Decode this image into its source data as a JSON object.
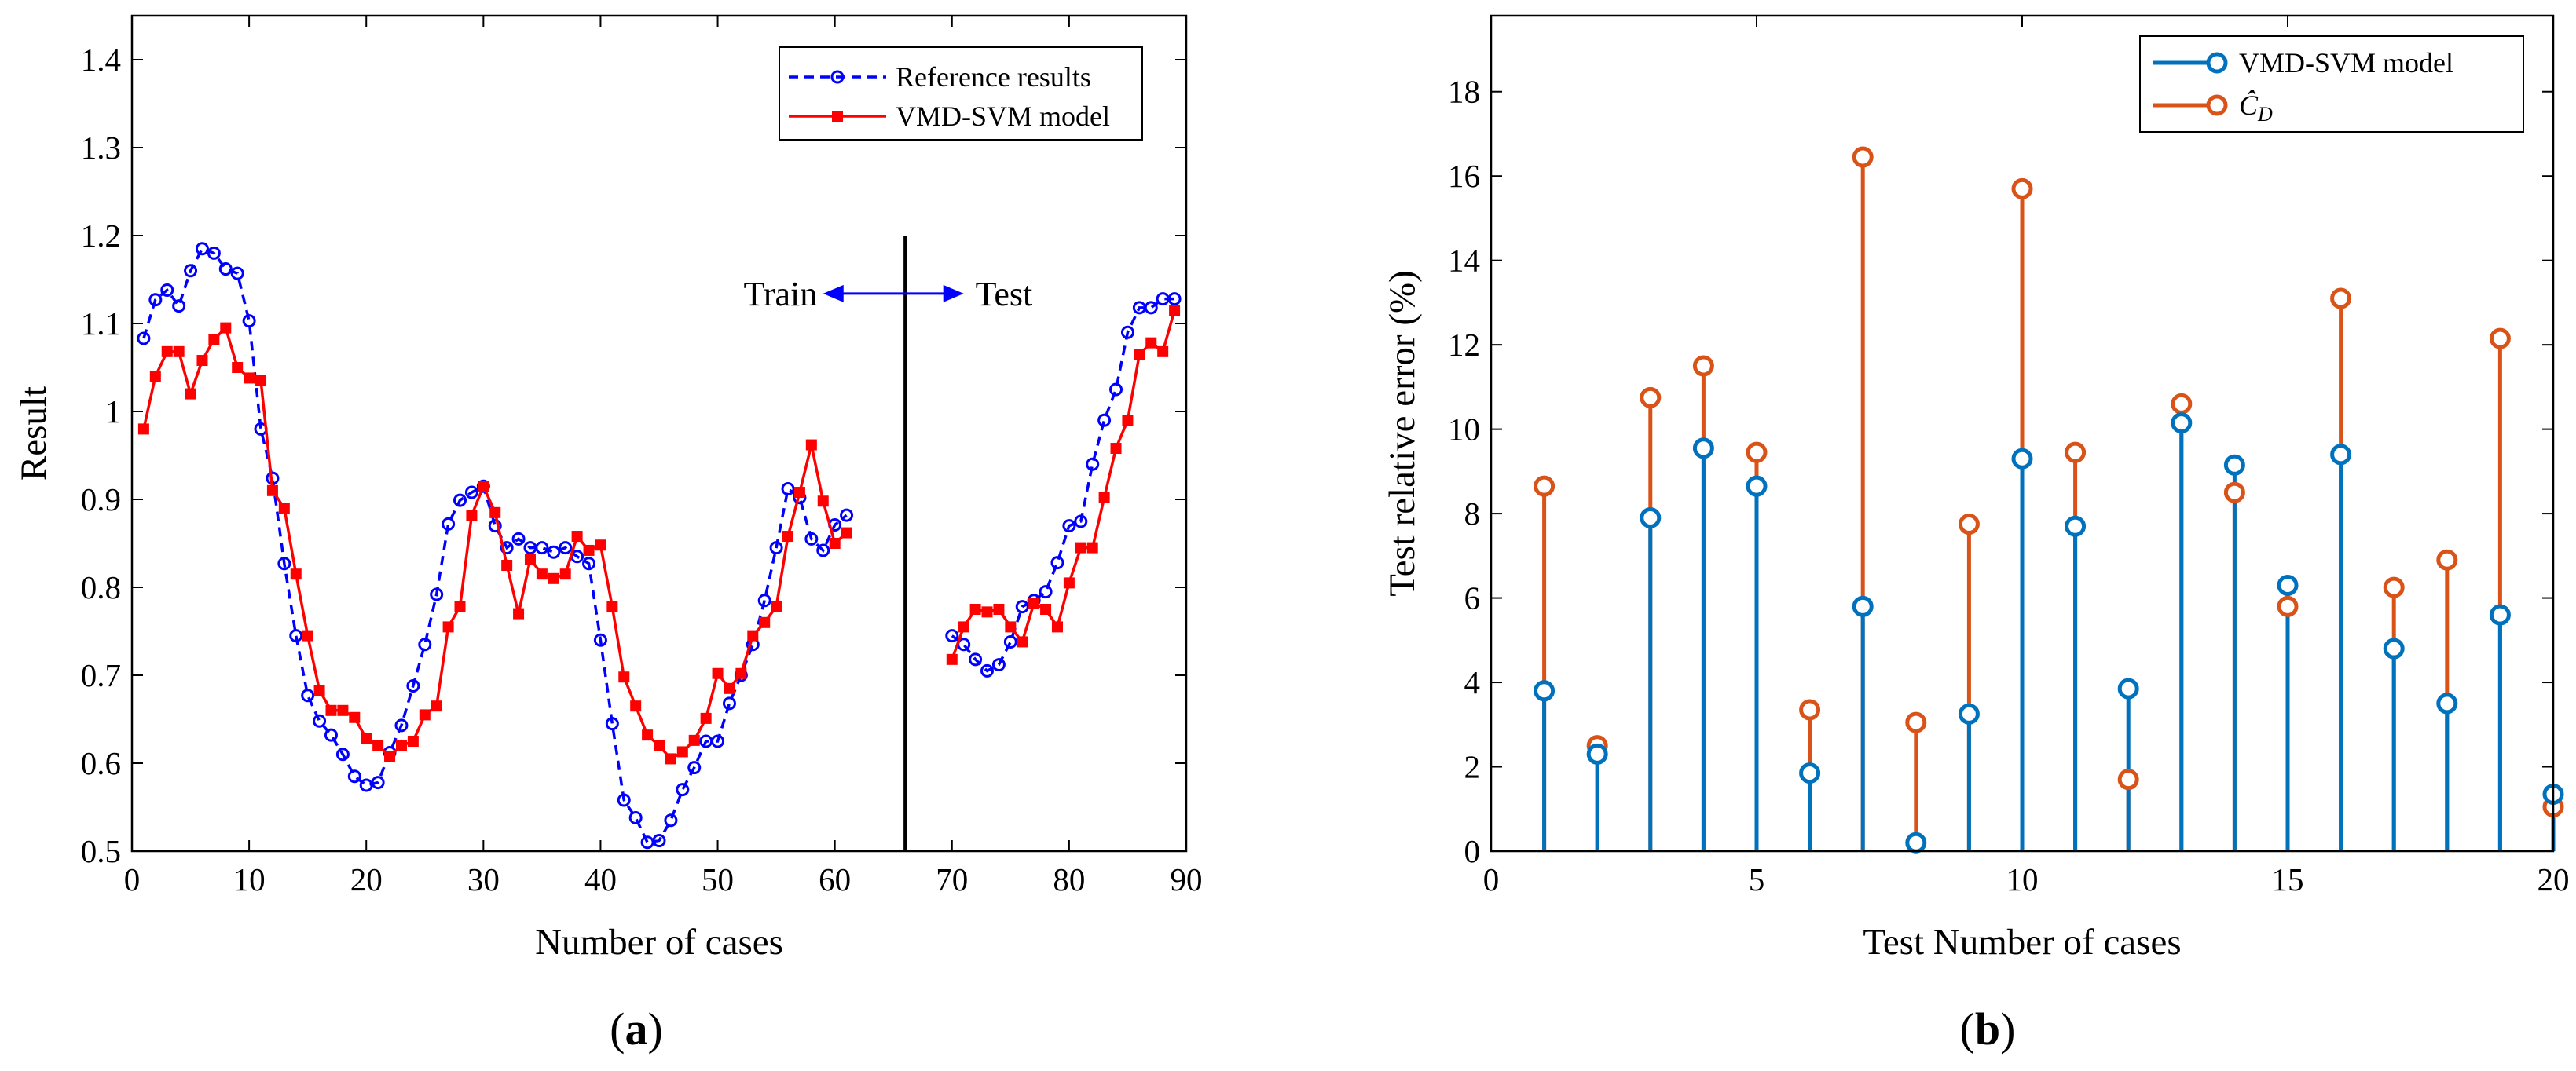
{
  "chart_data": [
    {
      "panel": "(a)",
      "type": "line",
      "xlabel": "Number of cases",
      "ylabel": "Result",
      "xlim": [
        0,
        90
      ],
      "ylim": [
        0.5,
        1.45
      ],
      "xticks": [
        0,
        10,
        20,
        30,
        40,
        50,
        60,
        70,
        80,
        90
      ],
      "yticks": [
        0.5,
        0.6,
        0.7,
        0.8,
        0.9,
        1,
        1.1,
        1.2,
        1.3,
        1.4
      ],
      "ytick_labels": [
        "0.5",
        "0.6",
        "0.7",
        "0.8",
        "0.9",
        "1",
        "1.1",
        "1.2",
        "1.3",
        "1.4"
      ],
      "legend_position": "top-right",
      "series": [
        {
          "name": "Reference results",
          "style": "dashed-circle",
          "color": "#0000ff",
          "segments": [
            {
              "x": [
                1,
                2,
                3,
                4,
                5,
                6,
                7,
                8,
                9,
                10,
                11,
                12,
                13,
                14,
                15,
                16,
                17,
                18,
                19,
                20,
                21,
                22,
                23,
                24,
                25,
                26,
                27,
                28,
                29,
                30,
                31,
                32,
                33,
                34,
                35,
                36,
                37,
                38,
                39,
                40,
                41,
                42,
                43,
                44,
                45,
                46,
                47,
                48,
                49,
                50,
                51,
                52,
                53,
                54,
                55,
                56,
                57,
                58,
                59,
                60,
                61
              ],
              "y": [
                1.083,
                1.127,
                1.138,
                1.12,
                1.16,
                1.185,
                1.18,
                1.162,
                1.157,
                1.103,
                0.98,
                0.924,
                0.827,
                0.745,
                0.677,
                0.648,
                0.632,
                0.61,
                0.585,
                0.575,
                0.578,
                0.612,
                0.643,
                0.688,
                0.735,
                0.792,
                0.872,
                0.899,
                0.908,
                0.915,
                0.87,
                0.845,
                0.855,
                0.845,
                0.845,
                0.84,
                0.845,
                0.835,
                0.827,
                0.74,
                0.645,
                0.558,
                0.538,
                0.51,
                0.512,
                0.535,
                0.57,
                0.595,
                0.625,
                0.625,
                0.668,
                0.7,
                0.735,
                0.785,
                0.845,
                0.912,
                0.902,
                0.855,
                0.842,
                0.871,
                0.882
              ]
            },
            {
              "x": [
                70,
                71,
                72,
                73,
                74,
                75,
                76,
                77,
                78,
                79,
                80,
                81,
                82,
                83,
                84,
                85,
                86,
                87,
                88,
                89
              ],
              "y": [
                0.745,
                0.735,
                0.718,
                0.705,
                0.712,
                0.738,
                0.778,
                0.785,
                0.795,
                0.828,
                0.87,
                0.875,
                0.94,
                0.99,
                1.025,
                1.09,
                1.118,
                1.118,
                1.128,
                1.128
              ]
            }
          ]
        },
        {
          "name": "VMD-SVM model",
          "style": "solid-square",
          "color": "#ff0000",
          "segments": [
            {
              "x": [
                1,
                2,
                3,
                4,
                5,
                6,
                7,
                8,
                9,
                10,
                11,
                12,
                13,
                14,
                15,
                16,
                17,
                18,
                19,
                20,
                21,
                22,
                23,
                24,
                25,
                26,
                27,
                28,
                29,
                30,
                31,
                32,
                33,
                34,
                35,
                36,
                37,
                38,
                39,
                40,
                41,
                42,
                43,
                44,
                45,
                46,
                47,
                48,
                49,
                50,
                51,
                52,
                53,
                54,
                55,
                56,
                57,
                58,
                59,
                60,
                61
              ],
              "y": [
                0.98,
                1.04,
                1.068,
                1.068,
                1.02,
                1.058,
                1.082,
                1.095,
                1.05,
                1.038,
                1.035,
                0.91,
                0.89,
                0.815,
                0.745,
                0.683,
                0.66,
                0.66,
                0.652,
                0.628,
                0.62,
                0.608,
                0.62,
                0.625,
                0.655,
                0.665,
                0.755,
                0.778,
                0.882,
                0.915,
                0.885,
                0.825,
                0.77,
                0.832,
                0.815,
                0.81,
                0.815,
                0.858,
                0.842,
                0.848,
                0.778,
                0.698,
                0.665,
                0.632,
                0.62,
                0.605,
                0.613,
                0.626,
                0.651,
                0.702,
                0.685,
                0.702,
                0.745,
                0.76,
                0.778,
                0.858,
                0.908,
                0.962,
                0.898,
                0.85,
                0.862
              ]
            },
            {
              "x": [
                70,
                71,
                72,
                73,
                74,
                75,
                76,
                77,
                78,
                79,
                80,
                81,
                82,
                83,
                84,
                85,
                86,
                87,
                88,
                89
              ],
              "y": [
                0.718,
                0.755,
                0.775,
                0.772,
                0.775,
                0.755,
                0.738,
                0.782,
                0.775,
                0.755,
                0.805,
                0.845,
                0.845,
                0.902,
                0.958,
                0.99,
                1.065,
                1.078,
                1.068,
                1.115
              ]
            }
          ]
        }
      ],
      "annotations": [
        {
          "type": "vline",
          "x": 66
        },
        {
          "type": "text",
          "text": "Train",
          "x": 58.5,
          "y": 1.134
        },
        {
          "type": "text",
          "text": "Test",
          "x": 72,
          "y": 1.134
        },
        {
          "type": "double-arrow",
          "x1": 59,
          "x2": 71,
          "y": 1.134
        }
      ]
    },
    {
      "panel": "(b)",
      "type": "stem",
      "xlabel": "Test Number of cases",
      "ylabel": "Test relative error (%)",
      "xlim": [
        0,
        20
      ],
      "ylim": [
        0,
        19.8
      ],
      "xticks": [
        0,
        5,
        10,
        15,
        20
      ],
      "yticks": [
        0,
        2,
        4,
        6,
        8,
        10,
        12,
        14,
        16,
        18
      ],
      "legend_position": "top-right",
      "x": [
        1,
        2,
        3,
        4,
        5,
        6,
        7,
        8,
        9,
        10,
        11,
        12,
        13,
        14,
        15,
        16,
        17,
        18,
        19,
        20
      ],
      "series": [
        {
          "name": "VMD-SVM model",
          "color": "#0072bd",
          "values": [
            3.8,
            2.3,
            7.9,
            9.55,
            8.65,
            1.85,
            5.8,
            0.2,
            3.25,
            9.3,
            7.7,
            3.85,
            10.15,
            9.15,
            6.3,
            9.4,
            4.8,
            3.5,
            5.6,
            1.35
          ]
        },
        {
          "name": "Ĉ",
          "name_subscript": "D",
          "color": "#d95319",
          "values": [
            8.65,
            2.5,
            10.75,
            11.5,
            9.45,
            3.35,
            16.45,
            3.05,
            7.75,
            15.7,
            9.45,
            1.7,
            10.6,
            8.5,
            5.8,
            13.1,
            6.25,
            6.9,
            12.15,
            1.05
          ]
        }
      ]
    }
  ]
}
